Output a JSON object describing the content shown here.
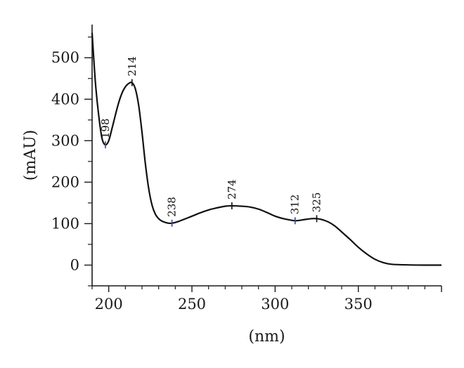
{
  "chart_data": {
    "type": "line",
    "title": "",
    "xlabel": "(nm)",
    "ylabel": "(mAU)",
    "xlim": [
      190,
      400
    ],
    "ylim": [
      -50,
      580
    ],
    "x_ticks": [
      200,
      250,
      300,
      350
    ],
    "y_ticks": [
      0,
      100,
      200,
      300,
      400,
      500
    ],
    "grid": false,
    "series": [
      {
        "values": [
          [
            190,
            560
          ],
          [
            192,
            440
          ],
          [
            194,
            360
          ],
          [
            196,
            305
          ],
          [
            198,
            290
          ],
          [
            200,
            300
          ],
          [
            202,
            330
          ],
          [
            204,
            362
          ],
          [
            206,
            392
          ],
          [
            208,
            415
          ],
          [
            210,
            430
          ],
          [
            212,
            438
          ],
          [
            214,
            440
          ],
          [
            216,
            425
          ],
          [
            218,
            385
          ],
          [
            220,
            320
          ],
          [
            222,
            245
          ],
          [
            224,
            185
          ],
          [
            226,
            145
          ],
          [
            228,
            123
          ],
          [
            230,
            112
          ],
          [
            232,
            106
          ],
          [
            234,
            103
          ],
          [
            236,
            101
          ],
          [
            238,
            101
          ],
          [
            241,
            104
          ],
          [
            245,
            110
          ],
          [
            250,
            118
          ],
          [
            255,
            126
          ],
          [
            260,
            133
          ],
          [
            265,
            138
          ],
          [
            270,
            142
          ],
          [
            274,
            143
          ],
          [
            280,
            142
          ],
          [
            285,
            140
          ],
          [
            290,
            135
          ],
          [
            295,
            127
          ],
          [
            300,
            118
          ],
          [
            305,
            112
          ],
          [
            310,
            108
          ],
          [
            312,
            107
          ],
          [
            315,
            108
          ],
          [
            318,
            110
          ],
          [
            322,
            112
          ],
          [
            325,
            112
          ],
          [
            328,
            110
          ],
          [
            332,
            104
          ],
          [
            336,
            94
          ],
          [
            340,
            80
          ],
          [
            345,
            62
          ],
          [
            350,
            43
          ],
          [
            355,
            27
          ],
          [
            360,
            14
          ],
          [
            365,
            6
          ],
          [
            370,
            2
          ],
          [
            380,
            0.5
          ],
          [
            390,
            0
          ],
          [
            400,
            0
          ]
        ]
      }
    ],
    "peaks": [
      {
        "label": "198",
        "x": 198,
        "y": 290,
        "color": "#3344aa"
      },
      {
        "label": "214",
        "x": 214,
        "y": 440,
        "color": "#111111"
      },
      {
        "label": "238",
        "x": 238,
        "y": 101,
        "color": "#3344aa"
      },
      {
        "label": "274",
        "x": 274,
        "y": 143,
        "color": "#111111"
      },
      {
        "label": "312",
        "x": 312,
        "y": 107,
        "color": "#3344aa"
      },
      {
        "label": "325",
        "x": 325,
        "y": 112,
        "color": "#111111"
      }
    ],
    "line_color": "#111111",
    "axis_color": "#1a1a1a"
  }
}
